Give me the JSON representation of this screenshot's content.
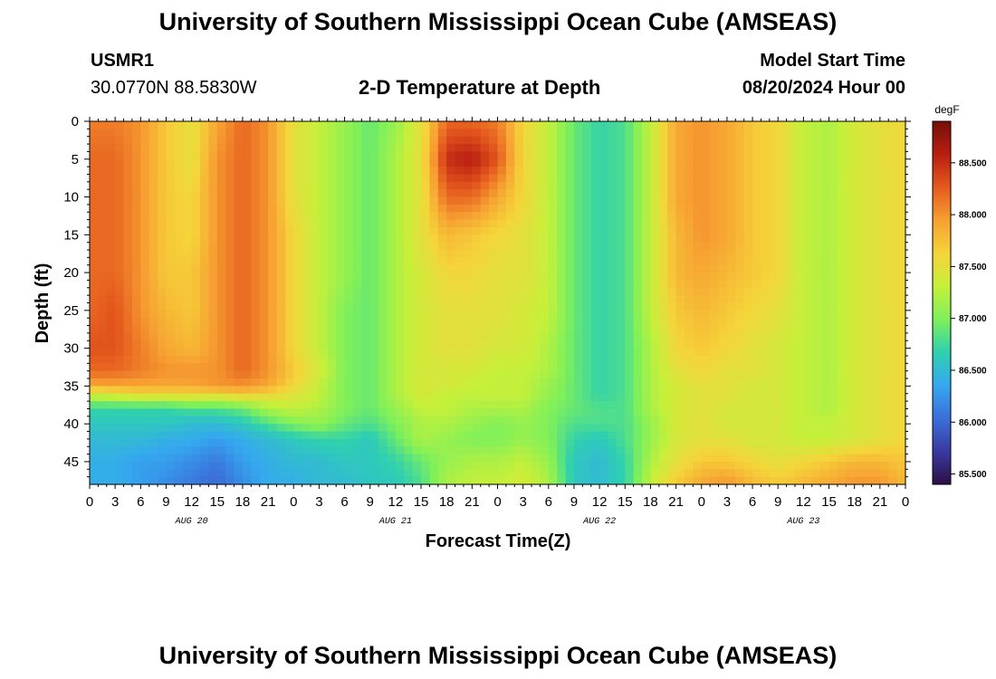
{
  "header": {
    "title": "University of Southern Mississippi Ocean Cube (AMSEAS)",
    "station": "USMR1",
    "coords": "30.0770N  88.5830W",
    "subtitle": "2-D Temperature at Depth",
    "model_start_label": "Model Start Time",
    "model_start_value": "08/20/2024 Hour 00"
  },
  "footer": {
    "title": "University of Southern Mississippi Ocean Cube (AMSEAS)"
  },
  "colors": {
    "scale": [
      "#2b0f45",
      "#3a3aa0",
      "#3b6fd9",
      "#35a8f0",
      "#2fd0b0",
      "#7ef05a",
      "#c6f03a",
      "#f5d43a",
      "#f7a032",
      "#e55a1e",
      "#b81e10",
      "#741008"
    ]
  },
  "chart_data": {
    "type": "heatmap",
    "title": "2-D Temperature at Depth",
    "xlabel": "Forecast Time(Z)",
    "ylabel": "Depth (ft)",
    "x_ticks": [
      "0",
      "3",
      "6",
      "9",
      "12",
      "15",
      "18",
      "21",
      "0",
      "3",
      "6",
      "9",
      "12",
      "15",
      "18",
      "21",
      "0",
      "3",
      "6",
      "9",
      "12",
      "15",
      "18",
      "21",
      "0",
      "3",
      "6",
      "9",
      "12",
      "15",
      "18",
      "21",
      "0"
    ],
    "day_labels": [
      "AUG 20",
      "AUG 21",
      "AUG 22",
      "AUG 23"
    ],
    "y_ticks": [
      0,
      5,
      10,
      15,
      20,
      25,
      30,
      35,
      40,
      45
    ],
    "ylim": [
      0,
      48
    ],
    "xlim_hours": [
      0,
      96
    ],
    "colorbar": {
      "unit": "degF",
      "range": [
        85.4,
        88.9
      ],
      "ticks": [
        "88.500",
        "88.000",
        "87.500",
        "87.000",
        "86.500",
        "86.000",
        "85.500"
      ],
      "tick_values": [
        88.5,
        88.0,
        87.5,
        87.0,
        86.5,
        86.0,
        85.5
      ]
    },
    "temperature_degF": {
      "depths_ft": [
        0,
        5,
        10,
        15,
        20,
        25,
        30,
        33,
        35,
        36,
        38,
        40,
        42,
        45,
        48
      ],
      "hours": [
        0,
        3,
        6,
        9,
        12,
        15,
        18,
        21,
        24,
        27,
        30,
        33,
        36,
        39,
        42,
        45,
        48,
        51,
        54,
        57,
        60,
        63,
        66,
        69,
        72,
        75,
        78,
        81,
        84,
        87,
        90,
        93,
        96
      ],
      "values": [
        [
          88.1,
          88.1,
          88.0,
          87.7,
          87.5,
          87.9,
          88.2,
          88.0,
          87.5,
          87.3,
          87.1,
          86.9,
          87.1,
          87.5,
          88.2,
          88.2,
          88.1,
          87.6,
          87.3,
          86.9,
          86.7,
          86.8,
          87.3,
          87.9,
          88.0,
          87.9,
          87.7,
          87.6,
          87.3,
          87.2,
          87.4,
          87.5,
          87.6
        ],
        [
          88.2,
          88.2,
          88.0,
          87.7,
          87.5,
          88.0,
          88.2,
          88.0,
          87.5,
          87.3,
          87.1,
          86.9,
          87.2,
          87.5,
          88.5,
          88.6,
          88.3,
          87.6,
          87.3,
          86.9,
          86.7,
          86.8,
          87.3,
          87.9,
          88.0,
          87.9,
          87.7,
          87.6,
          87.3,
          87.2,
          87.4,
          87.5,
          87.6
        ],
        [
          88.2,
          88.2,
          88.0,
          87.7,
          87.6,
          88.0,
          88.2,
          88.0,
          87.5,
          87.3,
          87.1,
          86.9,
          87.2,
          87.5,
          88.2,
          88.2,
          87.9,
          87.6,
          87.3,
          86.9,
          86.7,
          86.8,
          87.3,
          87.9,
          88.0,
          87.9,
          87.7,
          87.6,
          87.3,
          87.2,
          87.4,
          87.5,
          87.6
        ],
        [
          88.2,
          88.2,
          88.0,
          87.7,
          87.6,
          88.0,
          88.2,
          88.0,
          87.6,
          87.3,
          87.1,
          86.9,
          87.2,
          87.5,
          87.8,
          87.7,
          87.6,
          87.5,
          87.3,
          86.9,
          86.7,
          86.8,
          87.3,
          87.8,
          88.0,
          87.9,
          87.7,
          87.6,
          87.3,
          87.2,
          87.4,
          87.5,
          87.6
        ],
        [
          88.2,
          88.2,
          88.0,
          87.7,
          87.7,
          88.0,
          88.2,
          88.0,
          87.6,
          87.3,
          87.1,
          86.9,
          87.2,
          87.4,
          87.6,
          87.6,
          87.5,
          87.5,
          87.3,
          86.9,
          86.7,
          86.8,
          87.3,
          87.8,
          87.9,
          87.8,
          87.7,
          87.6,
          87.3,
          87.2,
          87.4,
          87.5,
          87.6
        ],
        [
          88.2,
          88.3,
          88.0,
          87.8,
          87.7,
          88.0,
          88.2,
          88.0,
          87.6,
          87.3,
          87.0,
          86.9,
          87.2,
          87.4,
          87.5,
          87.5,
          87.5,
          87.4,
          87.3,
          86.9,
          86.7,
          86.8,
          87.3,
          87.7,
          87.8,
          87.7,
          87.6,
          87.5,
          87.3,
          87.2,
          87.4,
          87.5,
          87.6
        ],
        [
          88.3,
          88.3,
          88.1,
          87.9,
          87.8,
          88.0,
          88.2,
          88.0,
          87.6,
          87.3,
          87.0,
          86.9,
          87.2,
          87.4,
          87.5,
          87.5,
          87.4,
          87.4,
          87.2,
          86.9,
          86.7,
          86.8,
          87.2,
          87.6,
          87.7,
          87.6,
          87.5,
          87.4,
          87.3,
          87.2,
          87.4,
          87.5,
          87.6
        ],
        [
          88.2,
          88.2,
          88.1,
          88.0,
          88.0,
          88.0,
          88.2,
          88.0,
          87.7,
          87.4,
          87.0,
          86.9,
          87.2,
          87.4,
          87.4,
          87.4,
          87.3,
          87.3,
          87.2,
          86.9,
          86.7,
          86.8,
          87.2,
          87.5,
          87.6,
          87.5,
          87.5,
          87.4,
          87.3,
          87.2,
          87.4,
          87.5,
          87.6
        ],
        [
          87.9,
          87.9,
          87.9,
          87.9,
          87.9,
          88.0,
          88.0,
          87.9,
          87.6,
          87.3,
          87.0,
          86.9,
          87.2,
          87.4,
          87.4,
          87.3,
          87.3,
          87.3,
          87.1,
          86.9,
          86.7,
          86.8,
          87.2,
          87.4,
          87.5,
          87.5,
          87.4,
          87.4,
          87.3,
          87.2,
          87.4,
          87.5,
          87.6
        ],
        [
          87.4,
          87.5,
          87.6,
          87.6,
          87.6,
          87.6,
          87.7,
          87.6,
          87.5,
          87.3,
          87.0,
          86.9,
          87.2,
          87.4,
          87.3,
          87.3,
          87.3,
          87.3,
          87.1,
          86.9,
          86.7,
          86.8,
          87.2,
          87.4,
          87.5,
          87.5,
          87.4,
          87.4,
          87.3,
          87.2,
          87.4,
          87.5,
          87.6
        ],
        [
          86.7,
          86.7,
          86.7,
          86.7,
          86.8,
          86.8,
          86.9,
          87.2,
          87.3,
          87.2,
          87.0,
          86.9,
          87.1,
          87.3,
          87.3,
          87.2,
          87.2,
          87.2,
          87.0,
          86.9,
          86.8,
          86.8,
          87.2,
          87.4,
          87.5,
          87.4,
          87.4,
          87.4,
          87.3,
          87.2,
          87.4,
          87.5,
          87.6
        ],
        [
          86.6,
          86.6,
          86.6,
          86.6,
          86.5,
          86.5,
          86.6,
          86.8,
          87.0,
          87.1,
          86.9,
          86.8,
          87.0,
          87.2,
          87.2,
          87.1,
          87.0,
          87.1,
          87.0,
          86.8,
          86.8,
          86.8,
          87.1,
          87.4,
          87.5,
          87.4,
          87.4,
          87.4,
          87.3,
          87.3,
          87.4,
          87.5,
          87.6
        ],
        [
          86.5,
          86.5,
          86.5,
          86.4,
          86.4,
          86.3,
          86.4,
          86.5,
          86.6,
          86.7,
          86.7,
          86.6,
          86.9,
          87.2,
          87.1,
          87.0,
          87.0,
          87.1,
          87.0,
          86.7,
          86.6,
          86.8,
          87.1,
          87.4,
          87.5,
          87.5,
          87.4,
          87.4,
          87.3,
          87.3,
          87.4,
          87.5,
          87.6
        ],
        [
          86.4,
          86.4,
          86.3,
          86.3,
          86.2,
          86.1,
          86.3,
          86.4,
          86.5,
          86.5,
          86.6,
          86.6,
          86.7,
          86.9,
          87.1,
          87.2,
          87.2,
          87.3,
          87.1,
          86.6,
          86.5,
          86.7,
          87.2,
          87.5,
          87.7,
          87.7,
          87.6,
          87.5,
          87.6,
          87.7,
          87.8,
          87.8,
          87.7
        ],
        [
          86.4,
          86.4,
          86.3,
          86.2,
          86.1,
          86.0,
          86.2,
          86.4,
          86.4,
          86.5,
          86.5,
          86.6,
          86.6,
          86.8,
          87.2,
          87.3,
          87.3,
          87.4,
          87.2,
          86.6,
          86.5,
          86.7,
          87.3,
          87.7,
          87.9,
          88.0,
          87.8,
          87.7,
          87.8,
          87.9,
          88.0,
          88.0,
          87.8
        ]
      ]
    }
  }
}
